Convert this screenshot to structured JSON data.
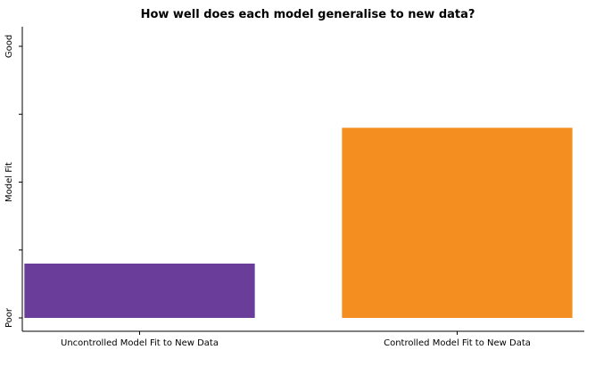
{
  "chart_data": {
    "type": "bar",
    "title": "How well does each model generalise to new data?",
    "xlabel": "",
    "ylabel": "Model Fit",
    "categories": [
      "Uncontrolled Model Fit to New Data",
      "Controlled Model Fit to New Data"
    ],
    "values": [
      0.2,
      0.7
    ],
    "ylim": [
      0,
      1
    ],
    "y_tick_labels": [
      "Poor",
      "Good"
    ],
    "bar_colors": [
      "#6A3D9A",
      "#F58E20"
    ],
    "grid": false,
    "legend": "none"
  }
}
